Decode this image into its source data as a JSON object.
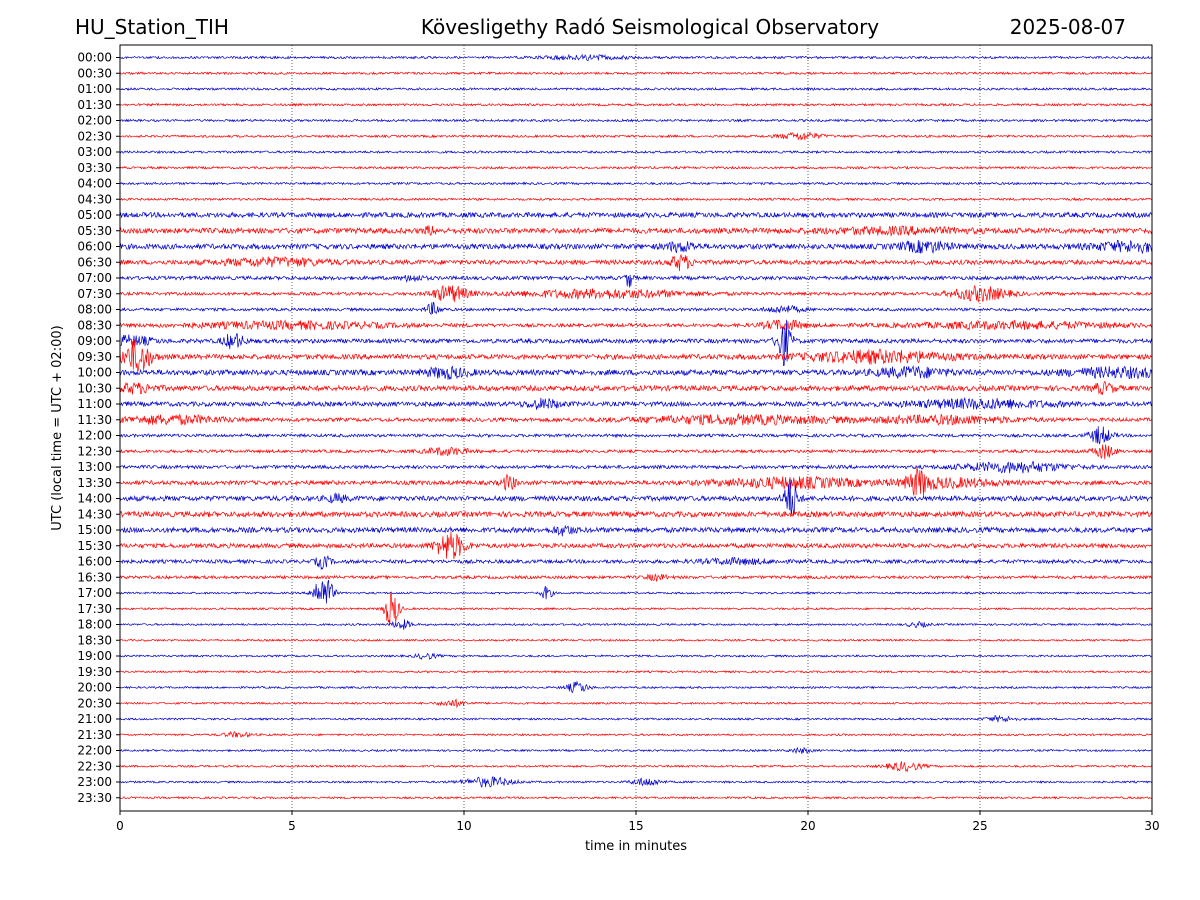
{
  "header": {
    "station": "HU_Station_TIH",
    "title": "Kövesligethy Radó Seismological Observatory",
    "date": "2025-08-07"
  },
  "chart_data": {
    "type": "line",
    "title": "Kövesligethy Radó Seismological Observatory",
    "xlabel": "time in minutes",
    "ylabel": "UTC (local time = UTC + 02:00)",
    "xlim": [
      0,
      30
    ],
    "xticks": [
      0,
      5,
      10,
      15,
      20,
      25,
      30
    ],
    "grid": "vertical dotted at x ticks",
    "row_colors": [
      "#0000cc",
      "#ff0000"
    ],
    "rows": [
      {
        "label": "00:00",
        "events": [
          {
            "t": 13.5,
            "a": 0.25,
            "w": 1.2
          }
        ]
      },
      {
        "label": "00:30",
        "events": []
      },
      {
        "label": "01:00",
        "events": []
      },
      {
        "label": "01:30",
        "events": []
      },
      {
        "label": "02:00",
        "events": []
      },
      {
        "label": "02:30",
        "events": [
          {
            "t": 19.8,
            "a": 0.45,
            "w": 0.6
          }
        ]
      },
      {
        "label": "03:00",
        "events": []
      },
      {
        "label": "03:30",
        "events": []
      },
      {
        "label": "04:00",
        "events": []
      },
      {
        "label": "04:30",
        "events": []
      },
      {
        "label": "05:00",
        "events": []
      },
      {
        "label": "05:30",
        "events": [
          {
            "t": 9.0,
            "a": 0.45,
            "w": 0.15
          },
          {
            "t": 22.5,
            "a": 0.3,
            "w": 2.0
          }
        ]
      },
      {
        "label": "06:00",
        "events": [
          {
            "t": 16.3,
            "a": 0.55,
            "w": 0.4
          },
          {
            "t": 23.4,
            "a": 0.6,
            "w": 0.7
          },
          {
            "t": 29.5,
            "a": 0.55,
            "w": 1.2
          }
        ]
      },
      {
        "label": "06:30",
        "events": [
          {
            "t": 4.5,
            "a": 0.45,
            "w": 1.5
          },
          {
            "t": 16.3,
            "a": 0.9,
            "w": 0.3
          }
        ]
      },
      {
        "label": "07:00",
        "events": [
          {
            "t": 8.5,
            "a": 0.35,
            "w": 0.3
          },
          {
            "t": 14.8,
            "a": 1.2,
            "w": 0.1
          }
        ]
      },
      {
        "label": "07:30",
        "events": [
          {
            "t": 9.6,
            "a": 1.0,
            "w": 0.5
          },
          {
            "t": 14.0,
            "a": 0.5,
            "w": 2.5
          },
          {
            "t": 25.0,
            "a": 0.9,
            "w": 0.8
          }
        ]
      },
      {
        "label": "08:00",
        "events": [
          {
            "t": 9.1,
            "a": 0.75,
            "w": 0.2
          },
          {
            "t": 19.3,
            "a": 0.4,
            "w": 0.5
          }
        ]
      },
      {
        "label": "08:30",
        "events": [
          {
            "t": 5.0,
            "a": 0.4,
            "w": 3.0
          },
          {
            "t": 19.3,
            "a": 0.6,
            "w": 0.6
          },
          {
            "t": 26.0,
            "a": 0.4,
            "w": 3.0
          }
        ]
      },
      {
        "label": "09:00",
        "events": [
          {
            "t": 0.3,
            "a": 0.6,
            "w": 0.6
          },
          {
            "t": 3.3,
            "a": 0.9,
            "w": 0.3
          },
          {
            "t": 19.3,
            "a": 3.0,
            "w": 0.2
          }
        ]
      },
      {
        "label": "09:30",
        "events": [
          {
            "t": 0.5,
            "a": 2.0,
            "w": 0.4
          },
          {
            "t": 22.0,
            "a": 0.7,
            "w": 2.0
          }
        ]
      },
      {
        "label": "10:00",
        "events": [
          {
            "t": 9.5,
            "a": 0.6,
            "w": 0.6
          },
          {
            "t": 23.0,
            "a": 0.55,
            "w": 1.0
          },
          {
            "t": 29.0,
            "a": 0.5,
            "w": 1.5
          }
        ]
      },
      {
        "label": "10:30",
        "events": [
          {
            "t": 0.4,
            "a": 0.5,
            "w": 0.6
          },
          {
            "t": 28.6,
            "a": 0.6,
            "w": 0.3
          }
        ]
      },
      {
        "label": "11:00",
        "events": [
          {
            "t": 12.3,
            "a": 0.55,
            "w": 0.5
          },
          {
            "t": 25.0,
            "a": 0.5,
            "w": 2.0
          }
        ]
      },
      {
        "label": "11:30",
        "events": [
          {
            "t": 1.5,
            "a": 0.5,
            "w": 1.5
          },
          {
            "t": 18.0,
            "a": 0.5,
            "w": 3.0
          },
          {
            "t": 24.0,
            "a": 0.45,
            "w": 2.0
          }
        ]
      },
      {
        "label": "12:00",
        "events": [
          {
            "t": 28.5,
            "a": 1.1,
            "w": 0.3
          }
        ]
      },
      {
        "label": "12:30",
        "events": [
          {
            "t": 9.5,
            "a": 0.45,
            "w": 0.6
          },
          {
            "t": 28.6,
            "a": 0.9,
            "w": 0.3
          }
        ]
      },
      {
        "label": "13:00",
        "events": [
          {
            "t": 26.0,
            "a": 0.6,
            "w": 1.5
          }
        ]
      },
      {
        "label": "13:30",
        "events": [
          {
            "t": 11.3,
            "a": 0.9,
            "w": 0.2
          },
          {
            "t": 19.5,
            "a": 0.6,
            "w": 2.0
          },
          {
            "t": 23.2,
            "a": 1.4,
            "w": 0.3
          },
          {
            "t": 24.0,
            "a": 0.5,
            "w": 1.5
          }
        ]
      },
      {
        "label": "14:00",
        "events": [
          {
            "t": 19.5,
            "a": 2.5,
            "w": 0.2
          },
          {
            "t": 6.3,
            "a": 0.4,
            "w": 0.3
          }
        ]
      },
      {
        "label": "14:30",
        "events": []
      },
      {
        "label": "15:00",
        "events": [
          {
            "t": 12.9,
            "a": 0.5,
            "w": 0.3
          }
        ]
      },
      {
        "label": "15:30",
        "events": [
          {
            "t": 9.6,
            "a": 1.7,
            "w": 0.4
          }
        ]
      },
      {
        "label": "16:00",
        "events": [
          {
            "t": 5.9,
            "a": 0.8,
            "w": 0.2
          },
          {
            "t": 17.9,
            "a": 0.3,
            "w": 1.0
          }
        ]
      },
      {
        "label": "16:30",
        "events": [
          {
            "t": 15.6,
            "a": 0.35,
            "w": 0.3
          }
        ]
      },
      {
        "label": "17:00",
        "events": [
          {
            "t": 5.7,
            "a": 1.3,
            "w": 0.15
          },
          {
            "t": 6.0,
            "a": 2.0,
            "w": 0.2
          },
          {
            "t": 12.4,
            "a": 0.9,
            "w": 0.15
          }
        ]
      },
      {
        "label": "17:30",
        "events": [
          {
            "t": 7.9,
            "a": 2.4,
            "w": 0.2
          }
        ]
      },
      {
        "label": "18:00",
        "events": [
          {
            "t": 8.2,
            "a": 0.6,
            "w": 0.25
          },
          {
            "t": 23.2,
            "a": 0.3,
            "w": 0.3
          }
        ]
      },
      {
        "label": "18:30",
        "events": []
      },
      {
        "label": "19:00",
        "events": [
          {
            "t": 8.9,
            "a": 0.35,
            "w": 0.3
          }
        ]
      },
      {
        "label": "19:30",
        "events": []
      },
      {
        "label": "20:00",
        "events": [
          {
            "t": 13.3,
            "a": 0.7,
            "w": 0.3
          }
        ]
      },
      {
        "label": "20:30",
        "events": [
          {
            "t": 9.7,
            "a": 0.4,
            "w": 0.4
          }
        ]
      },
      {
        "label": "21:00",
        "events": [
          {
            "t": 25.6,
            "a": 0.35,
            "w": 0.4
          }
        ]
      },
      {
        "label": "21:30",
        "events": [
          {
            "t": 3.4,
            "a": 0.3,
            "w": 0.4
          }
        ]
      },
      {
        "label": "22:00",
        "events": [
          {
            "t": 19.8,
            "a": 0.3,
            "w": 0.3
          }
        ]
      },
      {
        "label": "22:30",
        "events": [
          {
            "t": 22.8,
            "a": 0.55,
            "w": 0.5
          }
        ]
      },
      {
        "label": "23:00",
        "events": [
          {
            "t": 10.7,
            "a": 0.6,
            "w": 0.7
          },
          {
            "t": 15.3,
            "a": 0.5,
            "w": 0.4
          }
        ]
      },
      {
        "label": "23:30",
        "events": []
      }
    ]
  }
}
